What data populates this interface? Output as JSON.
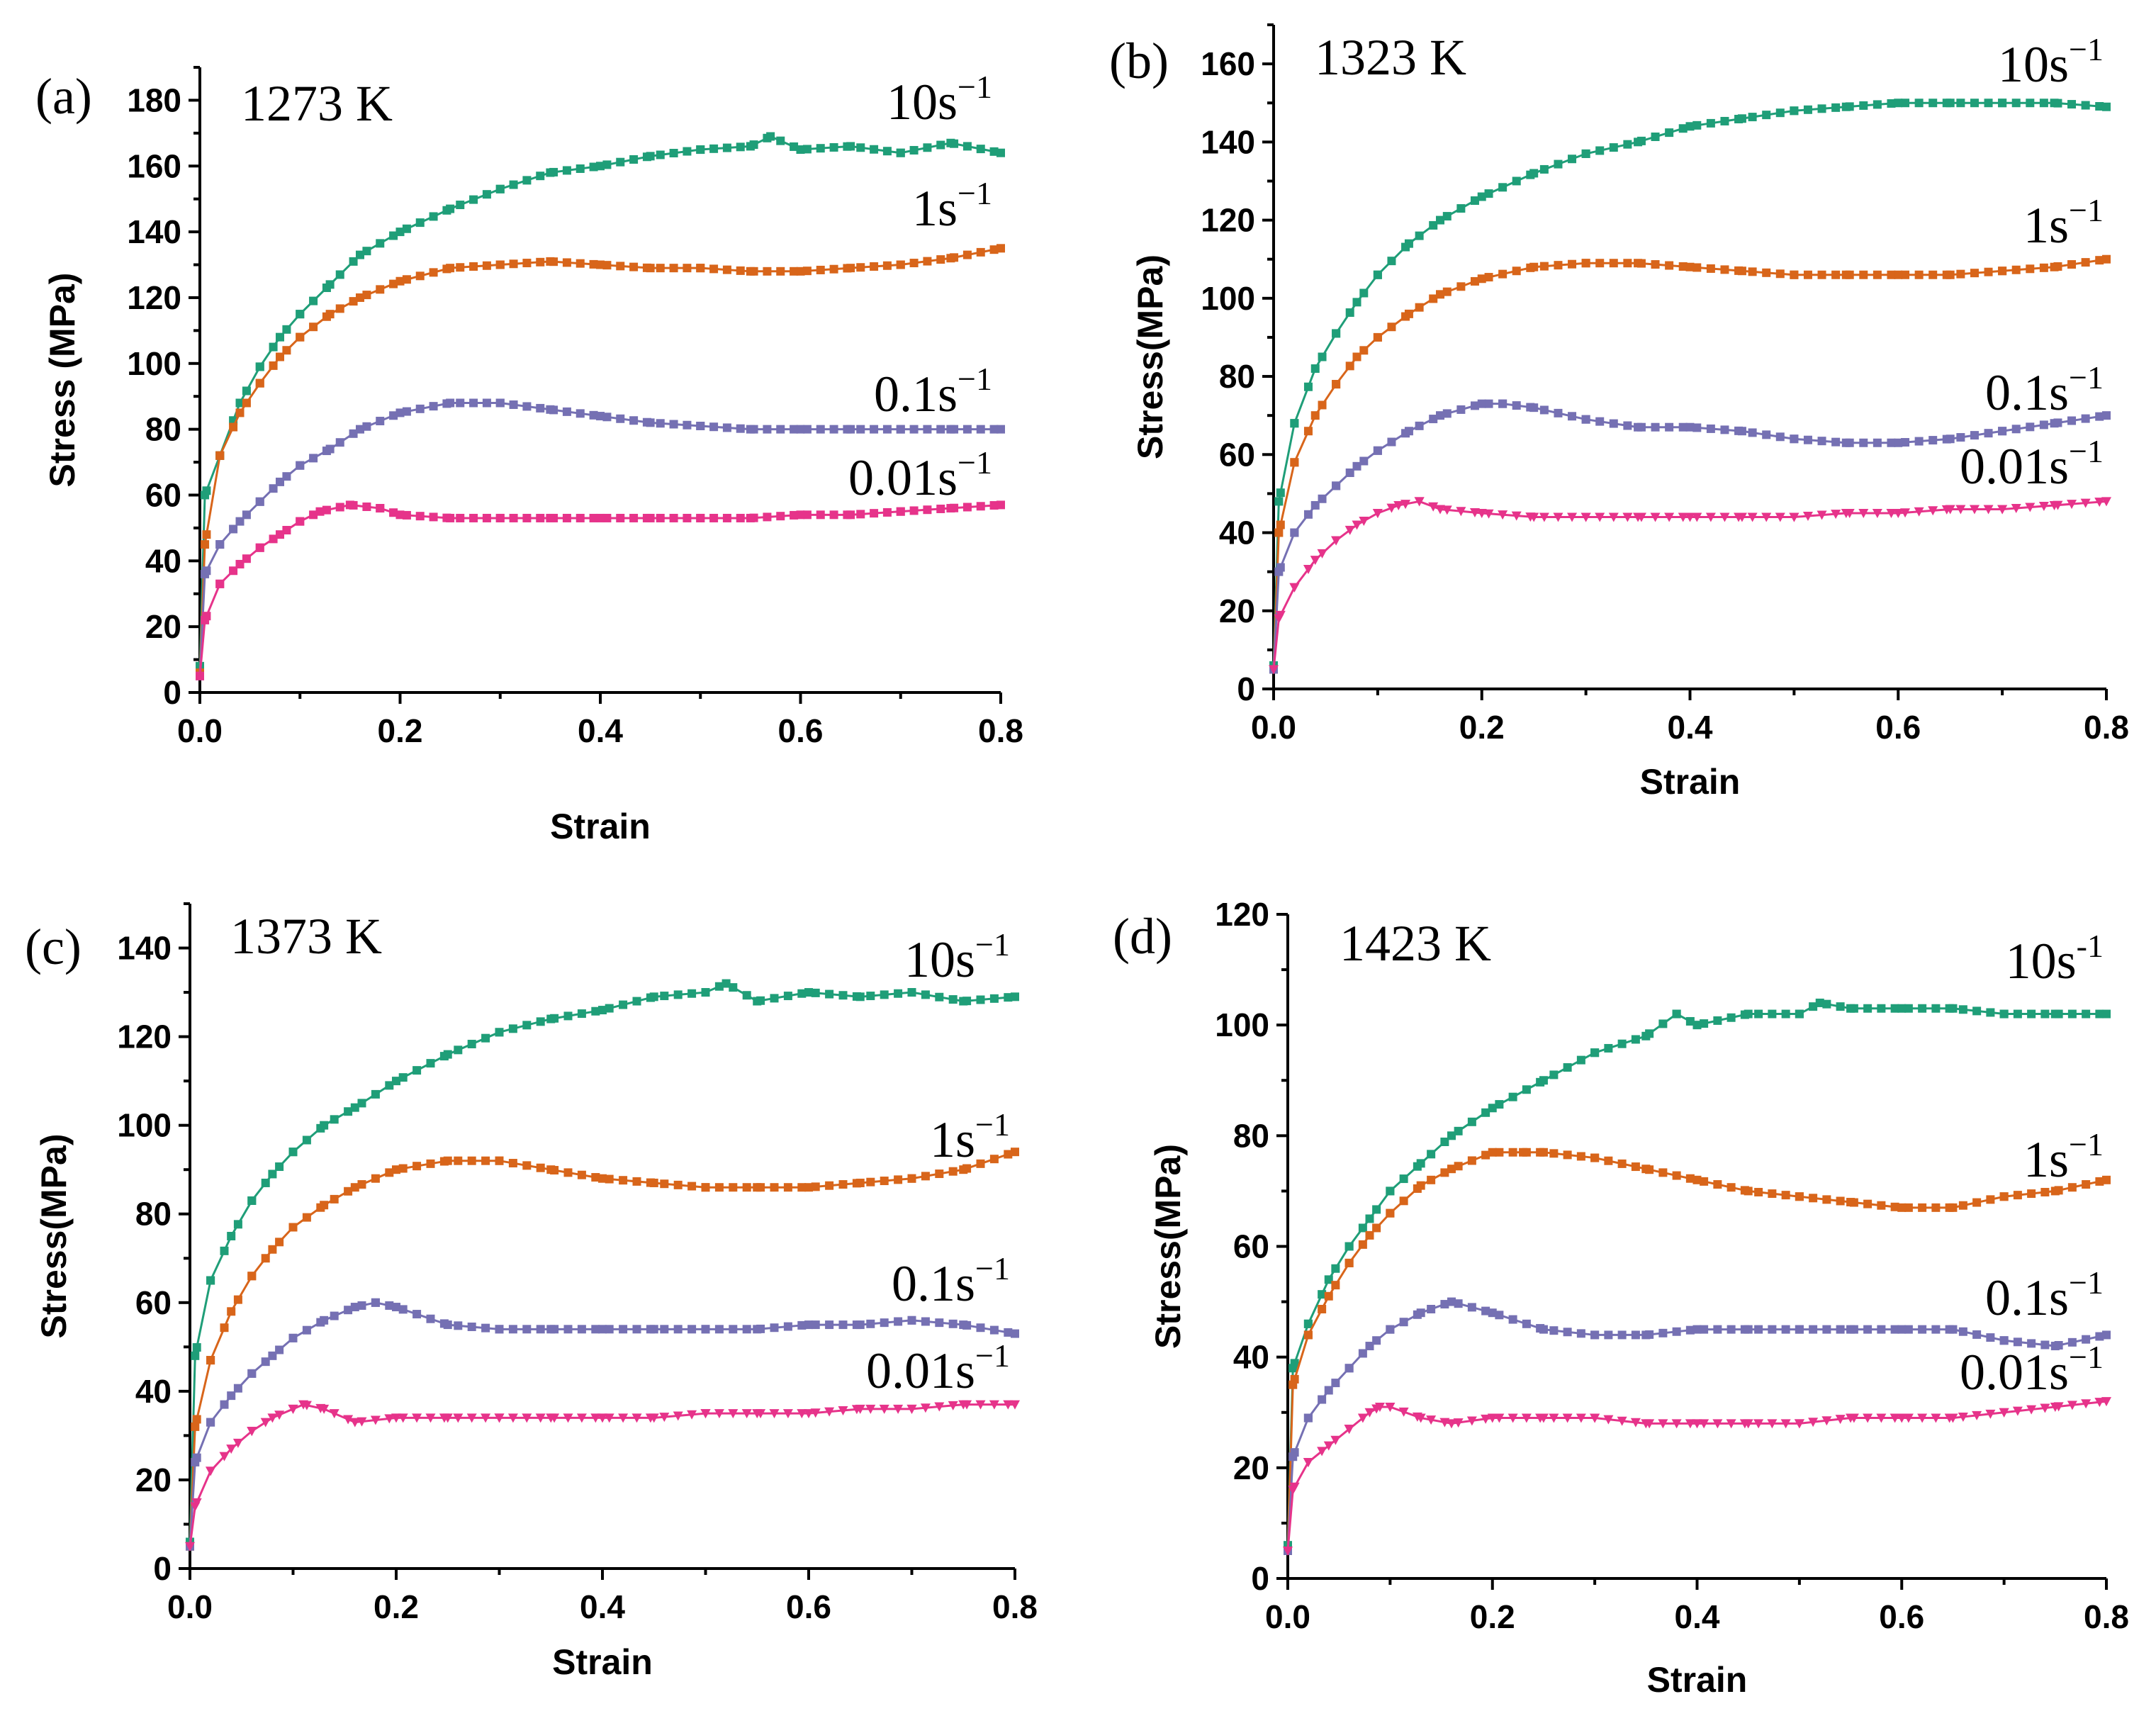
{
  "chart_data": [
    {
      "type": "line",
      "panel_label": "(a)",
      "title": "1273 K",
      "xlabel": "Strain",
      "ylabel": "Stress (MPa)",
      "xlim": [
        0,
        0.8
      ],
      "ylim": [
        0,
        190
      ],
      "xticks": [
        0.0,
        0.2,
        0.4,
        0.6,
        0.8
      ],
      "xtick_labels": [
        "0.0",
        "0.2",
        "0.4",
        "0.6",
        "0.8"
      ],
      "yticks": [
        0,
        20,
        40,
        60,
        80,
        100,
        120,
        140,
        160,
        180
      ],
      "ytick_labels": [
        "0",
        "20",
        "40",
        "60",
        "80",
        "100",
        "120",
        "140",
        "160",
        "180"
      ],
      "series": [
        {
          "name": "10s",
          "sup": "−1",
          "color": "#1f9e78",
          "marker": "square",
          "x": [
            0,
            0.005,
            0.02,
            0.04,
            0.06,
            0.08,
            0.1,
            0.13,
            0.16,
            0.2,
            0.25,
            0.3,
            0.35,
            0.4,
            0.45,
            0.5,
            0.55,
            0.57,
            0.6,
            0.65,
            0.7,
            0.75,
            0.8
          ],
          "y": [
            8,
            60,
            72,
            88,
            99,
            108,
            115,
            124,
            133,
            140,
            147,
            153,
            158,
            160,
            163,
            165,
            166,
            169,
            165,
            166,
            164,
            167,
            164
          ]
        },
        {
          "name": "1s",
          "sup": "−1",
          "color": "#d8651a",
          "marker": "square",
          "x": [
            0,
            0.005,
            0.02,
            0.04,
            0.06,
            0.08,
            0.1,
            0.13,
            0.16,
            0.2,
            0.25,
            0.3,
            0.35,
            0.4,
            0.45,
            0.5,
            0.55,
            0.6,
            0.65,
            0.7,
            0.75,
            0.8
          ],
          "y": [
            6,
            45,
            72,
            85,
            94,
            102,
            108,
            115,
            120,
            125,
            129,
            130,
            131,
            130,
            129,
            129,
            128,
            128,
            129,
            130,
            132,
            135
          ]
        },
        {
          "name": "0.1s",
          "sup": "−1",
          "color": "#7570b3",
          "marker": "square",
          "x": [
            0,
            0.005,
            0.02,
            0.04,
            0.06,
            0.08,
            0.1,
            0.13,
            0.16,
            0.2,
            0.25,
            0.3,
            0.35,
            0.4,
            0.45,
            0.5,
            0.55,
            0.6,
            0.65,
            0.7,
            0.75,
            0.8
          ],
          "y": [
            5,
            36,
            45,
            52,
            58,
            64,
            69,
            74,
            80,
            85,
            88,
            88,
            86,
            84,
            82,
            81,
            80,
            80,
            80,
            80,
            80,
            80
          ]
        },
        {
          "name": "0.01s",
          "sup": "−1",
          "color": "#e6338a",
          "marker": "square",
          "x": [
            0,
            0.005,
            0.02,
            0.04,
            0.06,
            0.08,
            0.1,
            0.12,
            0.15,
            0.18,
            0.2,
            0.25,
            0.3,
            0.35,
            0.4,
            0.45,
            0.5,
            0.55,
            0.6,
            0.65,
            0.7,
            0.75,
            0.8
          ],
          "y": [
            5,
            22,
            33,
            39,
            44,
            48,
            52,
            55,
            57,
            56,
            54,
            53,
            53,
            53,
            53,
            53,
            53,
            53,
            54,
            54,
            55,
            56,
            57
          ]
        }
      ]
    },
    {
      "type": "line",
      "panel_label": "(b)",
      "title": "1323 K",
      "xlabel": "Strain",
      "ylabel": "Stress(MPa)",
      "xlim": [
        0,
        0.8
      ],
      "ylim": [
        0,
        170
      ],
      "xticks": [
        0.0,
        0.2,
        0.4,
        0.6,
        0.8
      ],
      "xtick_labels": [
        "0.0",
        "0.2",
        "0.4",
        "0.6",
        "0.8"
      ],
      "yticks": [
        0,
        20,
        40,
        60,
        80,
        100,
        120,
        140,
        160
      ],
      "ytick_labels": [
        "0",
        "20",
        "40",
        "60",
        "80",
        "100",
        "120",
        "140",
        "160"
      ],
      "series": [
        {
          "name": "10s",
          "sup": "−1",
          "color": "#1f9e78",
          "marker": "square",
          "x": [
            0,
            0.005,
            0.02,
            0.04,
            0.06,
            0.08,
            0.1,
            0.13,
            0.16,
            0.2,
            0.25,
            0.3,
            0.35,
            0.4,
            0.45,
            0.5,
            0.55,
            0.6,
            0.65,
            0.7,
            0.75,
            0.8
          ],
          "y": [
            6,
            48,
            68,
            82,
            91,
            99,
            106,
            114,
            120,
            126,
            132,
            137,
            140,
            144,
            146,
            148,
            149,
            150,
            150,
            150,
            150,
            149
          ]
        },
        {
          "name": "1s",
          "sup": "−1",
          "color": "#d8651a",
          "marker": "square",
          "x": [
            0,
            0.005,
            0.02,
            0.04,
            0.06,
            0.08,
            0.1,
            0.13,
            0.16,
            0.2,
            0.25,
            0.3,
            0.35,
            0.4,
            0.45,
            0.5,
            0.55,
            0.6,
            0.65,
            0.7,
            0.75,
            0.8
          ],
          "y": [
            5,
            40,
            58,
            70,
            78,
            85,
            90,
            96,
            101,
            105,
            108,
            109,
            109,
            108,
            107,
            106,
            106,
            106,
            106,
            107,
            108,
            110
          ]
        },
        {
          "name": "0.1s",
          "sup": "−1",
          "color": "#7570b3",
          "marker": "square",
          "x": [
            0,
            0.005,
            0.02,
            0.04,
            0.06,
            0.08,
            0.1,
            0.13,
            0.16,
            0.2,
            0.22,
            0.25,
            0.3,
            0.35,
            0.4,
            0.45,
            0.5,
            0.55,
            0.6,
            0.65,
            0.7,
            0.75,
            0.8
          ],
          "y": [
            5,
            30,
            40,
            47,
            52,
            57,
            61,
            66,
            70,
            73,
            73,
            72,
            69,
            67,
            67,
            66,
            64,
            63,
            63,
            64,
            66,
            68,
            70
          ]
        },
        {
          "name": "0.01s",
          "sup": "−1",
          "color": "#e6338a",
          "marker": "triangle",
          "x": [
            0,
            0.005,
            0.02,
            0.04,
            0.06,
            0.08,
            0.1,
            0.12,
            0.14,
            0.16,
            0.2,
            0.25,
            0.3,
            0.35,
            0.4,
            0.45,
            0.5,
            0.55,
            0.6,
            0.65,
            0.7,
            0.75,
            0.8
          ],
          "y": [
            5,
            18,
            26,
            33,
            38,
            42,
            45,
            47,
            48,
            46,
            45,
            44,
            44,
            44,
            44,
            44,
            44,
            45,
            45,
            46,
            46,
            47,
            48
          ]
        }
      ]
    },
    {
      "type": "line",
      "panel_label": "(c)",
      "title": "1373 K",
      "xlabel": "Strain",
      "ylabel": "Stress(MPa)",
      "xlim": [
        0,
        0.8
      ],
      "ylim": [
        0,
        150
      ],
      "xticks": [
        0.0,
        0.2,
        0.4,
        0.6,
        0.8
      ],
      "xtick_labels": [
        "0.0",
        "0.2",
        "0.4",
        "0.6",
        "0.8"
      ],
      "yticks": [
        0,
        20,
        40,
        60,
        80,
        100,
        120,
        140
      ],
      "ytick_labels": [
        "0",
        "20",
        "40",
        "60",
        "80",
        "100",
        "120",
        "140"
      ],
      "series": [
        {
          "name": "10s",
          "sup": "−1",
          "color": "#1f9e78",
          "marker": "square",
          "x": [
            0,
            0.005,
            0.02,
            0.04,
            0.06,
            0.08,
            0.1,
            0.13,
            0.16,
            0.2,
            0.25,
            0.3,
            0.35,
            0.4,
            0.45,
            0.5,
            0.52,
            0.55,
            0.6,
            0.65,
            0.7,
            0.75,
            0.8
          ],
          "y": [
            6,
            48,
            65,
            75,
            83,
            89,
            94,
            100,
            104,
            110,
            116,
            121,
            124,
            126,
            129,
            130,
            132,
            128,
            130,
            129,
            130,
            128,
            129
          ]
        },
        {
          "name": "1s",
          "sup": "−1",
          "color": "#d8651a",
          "marker": "square",
          "x": [
            0,
            0.005,
            0.02,
            0.04,
            0.06,
            0.08,
            0.1,
            0.13,
            0.16,
            0.2,
            0.25,
            0.3,
            0.35,
            0.4,
            0.45,
            0.5,
            0.55,
            0.6,
            0.65,
            0.7,
            0.75,
            0.8
          ],
          "y": [
            5,
            32,
            47,
            58,
            66,
            72,
            77,
            82,
            86,
            90,
            92,
            92,
            90,
            88,
            87,
            86,
            86,
            86,
            87,
            88,
            90,
            94
          ]
        },
        {
          "name": "0.1s",
          "sup": "−1",
          "color": "#7570b3",
          "marker": "square",
          "x": [
            0,
            0.005,
            0.02,
            0.04,
            0.06,
            0.08,
            0.1,
            0.13,
            0.16,
            0.18,
            0.2,
            0.25,
            0.3,
            0.35,
            0.4,
            0.45,
            0.5,
            0.55,
            0.6,
            0.65,
            0.7,
            0.75,
            0.8
          ],
          "y": [
            5,
            24,
            33,
            39,
            44,
            48,
            52,
            56,
            59,
            60,
            59,
            55,
            54,
            54,
            54,
            54,
            54,
            54,
            55,
            55,
            56,
            55,
            53
          ]
        },
        {
          "name": "0.01s",
          "sup": "−1",
          "color": "#e6338a",
          "marker": "triangle",
          "x": [
            0,
            0.005,
            0.02,
            0.04,
            0.06,
            0.08,
            0.1,
            0.11,
            0.13,
            0.16,
            0.2,
            0.25,
            0.3,
            0.35,
            0.4,
            0.45,
            0.5,
            0.55,
            0.6,
            0.65,
            0.7,
            0.75,
            0.8
          ],
          "y": [
            5,
            14,
            22,
            27,
            31,
            34,
            36,
            37,
            36,
            33,
            34,
            34,
            34,
            34,
            34,
            34,
            35,
            35,
            35,
            36,
            36,
            37,
            37
          ]
        }
      ]
    },
    {
      "type": "line",
      "panel_label": "(d)",
      "title": "1423 K",
      "xlabel": "Strain",
      "ylabel": "Stress(MPa)",
      "xlim": [
        0,
        0.8
      ],
      "ylim": [
        0,
        120
      ],
      "xticks": [
        0.0,
        0.2,
        0.4,
        0.6,
        0.8
      ],
      "xtick_labels": [
        "0.0",
        "0.2",
        "0.4",
        "0.6",
        "0.8"
      ],
      "yticks": [
        0,
        20,
        40,
        60,
        80,
        100,
        120
      ],
      "ytick_labels": [
        "0",
        "20",
        "40",
        "60",
        "80",
        "100",
        "120"
      ],
      "series": [
        {
          "name": "10s",
          "sup": "-1",
          "color": "#1f9e78",
          "marker": "square",
          "x": [
            0,
            0.005,
            0.02,
            0.04,
            0.06,
            0.08,
            0.1,
            0.13,
            0.16,
            0.2,
            0.25,
            0.3,
            0.35,
            0.38,
            0.4,
            0.45,
            0.5,
            0.52,
            0.55,
            0.6,
            0.65,
            0.7,
            0.75,
            0.8
          ],
          "y": [
            6,
            38,
            46,
            54,
            60,
            65,
            70,
            75,
            80,
            85,
            90,
            95,
            98,
            102,
            100,
            102,
            102,
            104,
            103,
            103,
            103,
            102,
            102,
            102
          ]
        },
        {
          "name": "1s",
          "sup": "−1",
          "color": "#d8651a",
          "marker": "square",
          "x": [
            0,
            0.005,
            0.02,
            0.04,
            0.06,
            0.08,
            0.1,
            0.13,
            0.16,
            0.2,
            0.23,
            0.25,
            0.3,
            0.35,
            0.4,
            0.45,
            0.5,
            0.55,
            0.6,
            0.65,
            0.7,
            0.75,
            0.8
          ],
          "y": [
            5,
            35,
            44,
            51,
            57,
            62,
            66,
            71,
            74,
            77,
            77,
            77,
            76,
            74,
            72,
            70,
            69,
            68,
            67,
            67,
            69,
            70,
            72
          ]
        },
        {
          "name": "0.1s",
          "sup": "−1",
          "color": "#7570b3",
          "marker": "square",
          "x": [
            0,
            0.005,
            0.02,
            0.04,
            0.06,
            0.08,
            0.1,
            0.13,
            0.16,
            0.2,
            0.25,
            0.3,
            0.35,
            0.4,
            0.45,
            0.5,
            0.55,
            0.6,
            0.65,
            0.7,
            0.75,
            0.8
          ],
          "y": [
            5,
            22,
            29,
            34,
            38,
            42,
            45,
            48,
            50,
            48,
            45,
            44,
            44,
            45,
            45,
            45,
            45,
            45,
            45,
            43,
            42,
            44
          ]
        },
        {
          "name": "0.01s",
          "sup": "−1",
          "color": "#e6338a",
          "marker": "triangle",
          "x": [
            0,
            0.005,
            0.02,
            0.04,
            0.06,
            0.08,
            0.09,
            0.1,
            0.13,
            0.16,
            0.2,
            0.25,
            0.3,
            0.35,
            0.4,
            0.45,
            0.5,
            0.55,
            0.6,
            0.65,
            0.7,
            0.75,
            0.8
          ],
          "y": [
            5,
            16,
            21,
            24,
            27,
            30,
            31,
            31,
            29,
            28,
            29,
            29,
            29,
            28,
            28,
            28,
            28,
            29,
            29,
            29,
            30,
            31,
            32
          ]
        }
      ]
    }
  ]
}
